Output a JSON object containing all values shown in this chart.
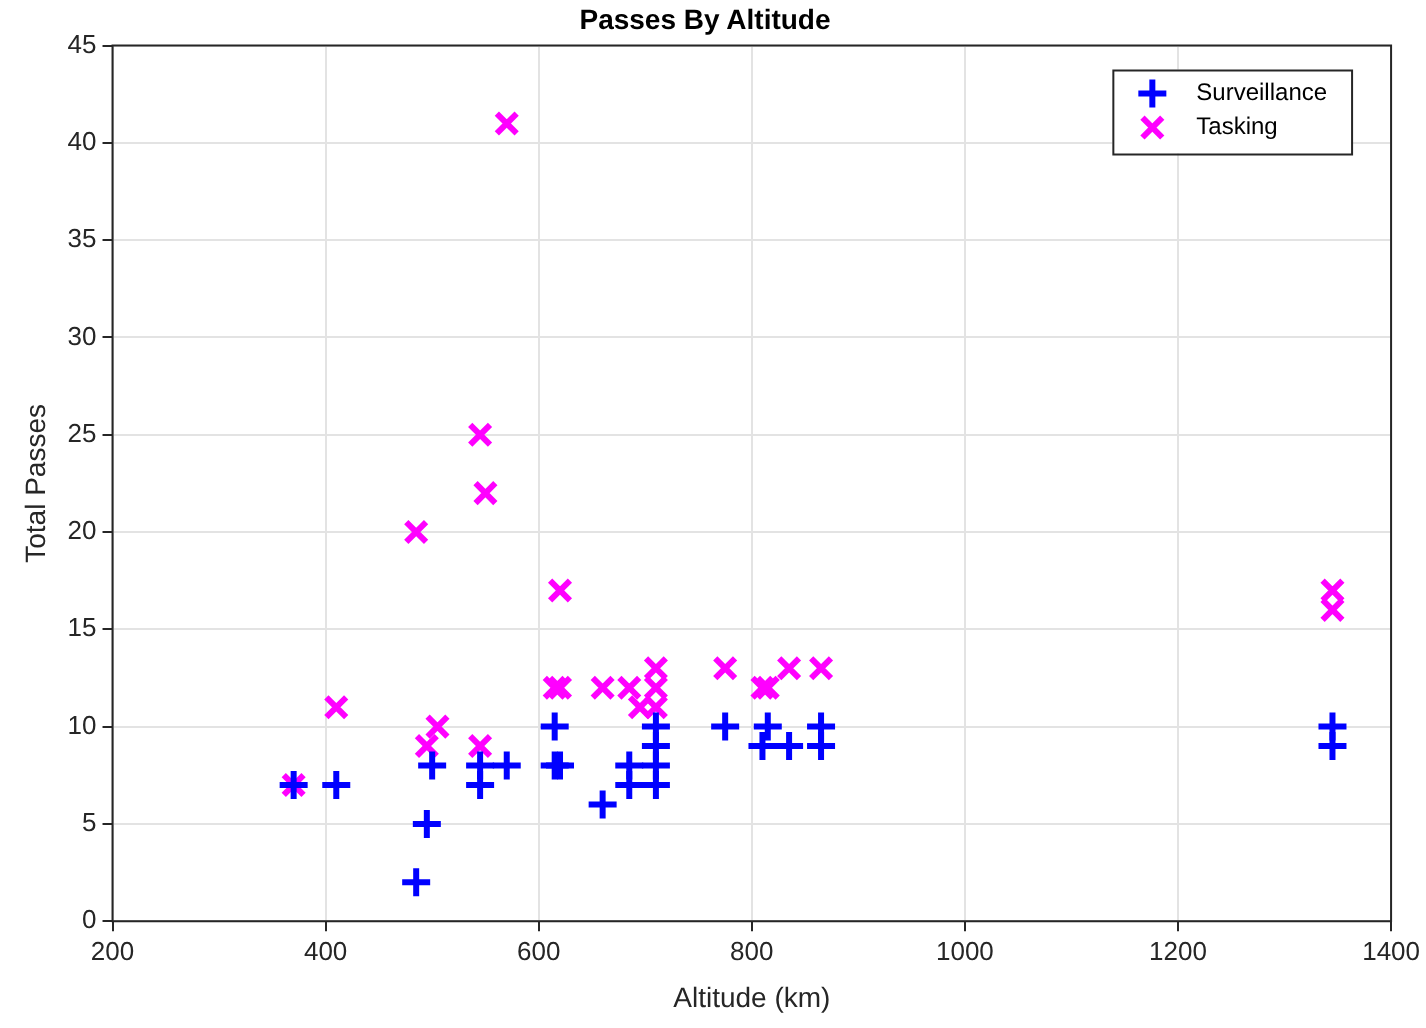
{
  "chart_data": {
    "type": "scatter",
    "title": "Passes By Altitude",
    "xlabel": "Altitude (km)",
    "ylabel": "Total Passes",
    "xlim": [
      200,
      1400
    ],
    "xticks": [
      200,
      400,
      600,
      800,
      1000,
      1200,
      1400
    ],
    "ylim": [
      0,
      45
    ],
    "yticks": [
      0,
      5,
      10,
      15,
      20,
      25,
      30,
      35,
      40,
      45
    ],
    "grid": true,
    "legend": "top right",
    "series": [
      {
        "name": "Surveillance",
        "color": "#0000ff",
        "marker": "plus",
        "x": [
          370,
          410,
          485,
          495,
          500,
          545,
          545,
          570,
          615,
          615,
          620,
          660,
          685,
          685,
          710,
          710,
          710,
          710,
          775,
          810,
          815,
          835,
          865,
          865,
          1345,
          1345
        ],
        "values": [
          7,
          7,
          2,
          5,
          8,
          8,
          7,
          8,
          10,
          8,
          8,
          6,
          7,
          8,
          7,
          8,
          9,
          10,
          10,
          9,
          10,
          9,
          9,
          10,
          9,
          10
        ]
      },
      {
        "name": "Tasking",
        "color": "#ff00ff",
        "marker": "cross",
        "x": [
          370,
          410,
          485,
          495,
          505,
          545,
          550,
          545,
          570,
          620,
          615,
          620,
          660,
          685,
          695,
          710,
          710,
          710,
          775,
          810,
          815,
          835,
          865,
          1345,
          1345
        ],
        "values": [
          7,
          11,
          20,
          9,
          10,
          25,
          22,
          9,
          41,
          17,
          12,
          12,
          12,
          12,
          11,
          13,
          12,
          11,
          13,
          12,
          12,
          13,
          13,
          17,
          16
        ]
      }
    ]
  }
}
